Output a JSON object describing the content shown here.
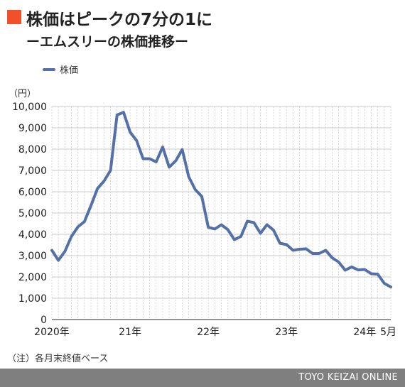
{
  "header": {
    "title": "株価はピークの7分の1に",
    "subtitle": "ーエムスリーの株価推移ー"
  },
  "unit_label": "（円）",
  "note": "（注）各月末終値ベース",
  "footer": {
    "brand": "TOYO KEIZAI ONLINE"
  },
  "colors": {
    "line": "#5470a8",
    "marker": "#f2502b",
    "footer": "#7f7f7f"
  },
  "chart_data": {
    "type": "line",
    "title": "株価はピークの7分の1に",
    "subtitle": "ーエムスリーの株価推移ー",
    "xlabel": "",
    "ylabel": "（円）",
    "ylim": [
      0,
      10000
    ],
    "yticks": [
      0,
      1000,
      2000,
      3000,
      4000,
      5000,
      6000,
      7000,
      8000,
      9000,
      10000
    ],
    "ytick_labels": [
      "0",
      "1,000",
      "2,000",
      "3,000",
      "4,000",
      "5,000",
      "6,000",
      "7,000",
      "8,000",
      "9,000",
      "10,000"
    ],
    "x_tick_labels": [
      {
        "index": 0,
        "label": "2020年"
      },
      {
        "index": 12,
        "label": "21年"
      },
      {
        "index": 24,
        "label": "22年"
      },
      {
        "index": 36,
        "label": "23年"
      },
      {
        "index": 48,
        "label": "24年"
      },
      {
        "index": 52,
        "label": "5月"
      }
    ],
    "grid": "horizontal and vertical",
    "legend": "top-left",
    "x": [
      "2020-01",
      "2020-02",
      "2020-03",
      "2020-04",
      "2020-05",
      "2020-06",
      "2020-07",
      "2020-08",
      "2020-09",
      "2020-10",
      "2020-11",
      "2020-12",
      "2021-01",
      "2021-02",
      "2021-03",
      "2021-04",
      "2021-05",
      "2021-06",
      "2021-07",
      "2021-08",
      "2021-09",
      "2021-10",
      "2021-11",
      "2021-12",
      "2022-01",
      "2022-02",
      "2022-03",
      "2022-04",
      "2022-05",
      "2022-06",
      "2022-07",
      "2022-08",
      "2022-09",
      "2022-10",
      "2022-11",
      "2022-12",
      "2023-01",
      "2023-02",
      "2023-03",
      "2023-04",
      "2023-05",
      "2023-06",
      "2023-07",
      "2023-08",
      "2023-09",
      "2023-10",
      "2023-11",
      "2023-12",
      "2024-01",
      "2024-02",
      "2024-03",
      "2024-04",
      "2024-05"
    ],
    "series": [
      {
        "name": "株価",
        "values": [
          3250,
          2780,
          3200,
          3900,
          4350,
          4600,
          5350,
          6150,
          6500,
          7000,
          9600,
          9730,
          8800,
          8400,
          7550,
          7550,
          7400,
          8100,
          7150,
          7450,
          7980,
          6700,
          6100,
          5780,
          4330,
          4250,
          4450,
          4220,
          3750,
          3900,
          4620,
          4550,
          4050,
          4450,
          4200,
          3580,
          3520,
          3250,
          3300,
          3320,
          3100,
          3100,
          3250,
          2900,
          2700,
          2320,
          2470,
          2330,
          2350,
          2150,
          2130,
          1700,
          1530
        ]
      }
    ]
  }
}
